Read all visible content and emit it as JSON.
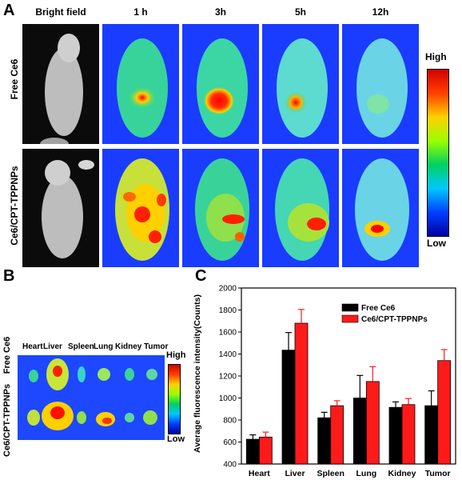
{
  "panelA": {
    "letter": "A",
    "columns": [
      "Bright field",
      "1 h",
      "3h",
      "5h",
      "12h"
    ],
    "rows": [
      "Free Ce6",
      "Ce6/CPT-TPPNPs"
    ],
    "colorbar": {
      "high": "High",
      "low": "Low"
    }
  },
  "panelB": {
    "letter": "B",
    "organs": [
      "Heart",
      "Liver",
      "Spleen",
      "Lung",
      "Kidney",
      "Tumor"
    ],
    "rows": [
      "Free Ce6",
      "Ce6/CPT-TPPNPs"
    ],
    "colorbar": {
      "high": "High",
      "low": "Low"
    }
  },
  "panelC": {
    "letter": "C"
  },
  "colors": {
    "free": "#000000",
    "tpp": "#ff1a1a",
    "bgBlue": "#1a3cff"
  },
  "chart_data": {
    "type": "bar",
    "categories": [
      "Heart",
      "Liver",
      "Spleen",
      "Lung",
      "Kidney",
      "Tumor"
    ],
    "series": [
      {
        "name": "Free Ce6",
        "values": [
          625,
          1435,
          820,
          1000,
          915,
          930
        ],
        "errors": [
          40,
          160,
          50,
          205,
          50,
          135
        ]
      },
      {
        "name": "Ce6/CPT-TPPNPs",
        "values": [
          645,
          1680,
          930,
          1150,
          940,
          1340
        ],
        "errors": [
          45,
          125,
          45,
          135,
          55,
          100
        ]
      }
    ],
    "ylabel": "Average fluorescence intensity(Counts)",
    "xlabel": "",
    "ylim": [
      400,
      2000
    ],
    "yticks": [
      400,
      600,
      800,
      1000,
      1200,
      1400,
      1600,
      1800,
      2000
    ],
    "legend": "top-right"
  }
}
